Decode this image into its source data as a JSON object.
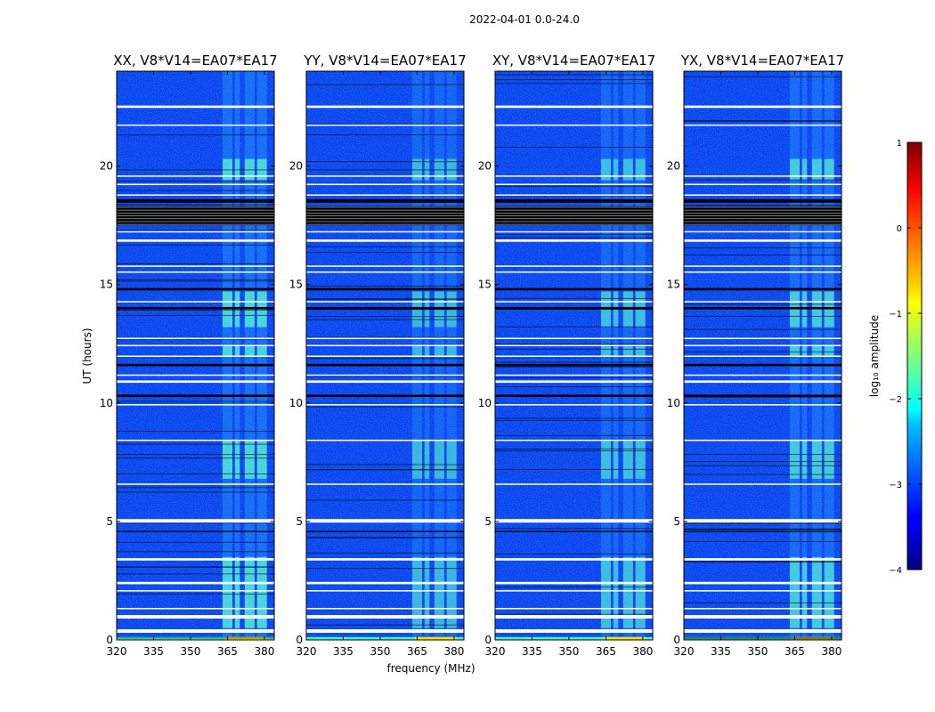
{
  "chart_data": {
    "type": "heatmap",
    "suptitle": "2022-04-01 0.0-24.0",
    "xlabel": "frequency (MHz)",
    "ylabel": "UT (hours)",
    "xlim": [
      320,
      384
    ],
    "ylim": [
      0,
      24
    ],
    "xticks": [
      320,
      335,
      350,
      365,
      380
    ],
    "yticks": [
      0,
      5,
      10,
      15,
      20
    ],
    "panels": [
      {
        "title": "XX, V8*V14=EA07*EA17",
        "rfi_scale": 1.0
      },
      {
        "title": "YY, V8*V14=EA07*EA17",
        "rfi_scale": 0.75
      },
      {
        "title": "XY, V8*V14=EA07*EA17",
        "rfi_scale": 0.8
      },
      {
        "title": "YX, V8*V14=EA07*EA17",
        "rfi_scale": 0.9
      }
    ],
    "colorbar": {
      "label": "log₁₀ amplitude",
      "range": [
        -4,
        1
      ],
      "ticks": [
        "1",
        "0",
        "−1",
        "−2",
        "−3",
        "−4"
      ],
      "colormap": "jet"
    },
    "flagged_black_bands_hours": [
      [
        17.5,
        18.3
      ],
      [
        18.45,
        18.6
      ],
      [
        14.75,
        14.85
      ],
      [
        13.95,
        14.05
      ],
      [
        11.55,
        11.65
      ],
      [
        10.25,
        10.35
      ],
      [
        4.55,
        4.6
      ]
    ],
    "flagged_white_gaps_hours": [
      [
        0.3,
        0.45
      ],
      [
        0.9,
        1.05
      ],
      [
        1.3,
        1.35
      ],
      [
        2.05,
        2.1
      ],
      [
        2.35,
        2.45
      ],
      [
        3.35,
        3.45
      ],
      [
        4.95,
        5.1
      ],
      [
        6.55,
        6.6
      ],
      [
        8.4,
        8.45
      ],
      [
        9.9,
        9.95
      ],
      [
        10.85,
        10.95
      ],
      [
        11.15,
        11.2
      ],
      [
        11.95,
        12.0
      ],
      [
        12.4,
        12.45
      ],
      [
        12.7,
        12.75
      ],
      [
        14.25,
        14.3
      ],
      [
        15.5,
        15.55
      ],
      [
        15.75,
        15.8
      ],
      [
        16.8,
        16.9
      ],
      [
        17.2,
        17.25
      ],
      [
        18.75,
        18.8
      ],
      [
        19.2,
        19.25
      ],
      [
        19.55,
        19.6
      ],
      [
        21.7,
        21.75
      ],
      [
        22.45,
        22.55
      ]
    ],
    "rfi_frequency_ranges_mhz": [
      [
        363,
        367
      ],
      [
        368,
        370
      ],
      [
        372,
        376
      ],
      [
        377,
        381
      ]
    ],
    "rfi_time_ranges_hours": [
      [
        0.5,
        3.5
      ],
      [
        6.8,
        8.4
      ],
      [
        12.0,
        12.4
      ],
      [
        13.2,
        14.7
      ],
      [
        19.4,
        20.3
      ]
    ]
  }
}
